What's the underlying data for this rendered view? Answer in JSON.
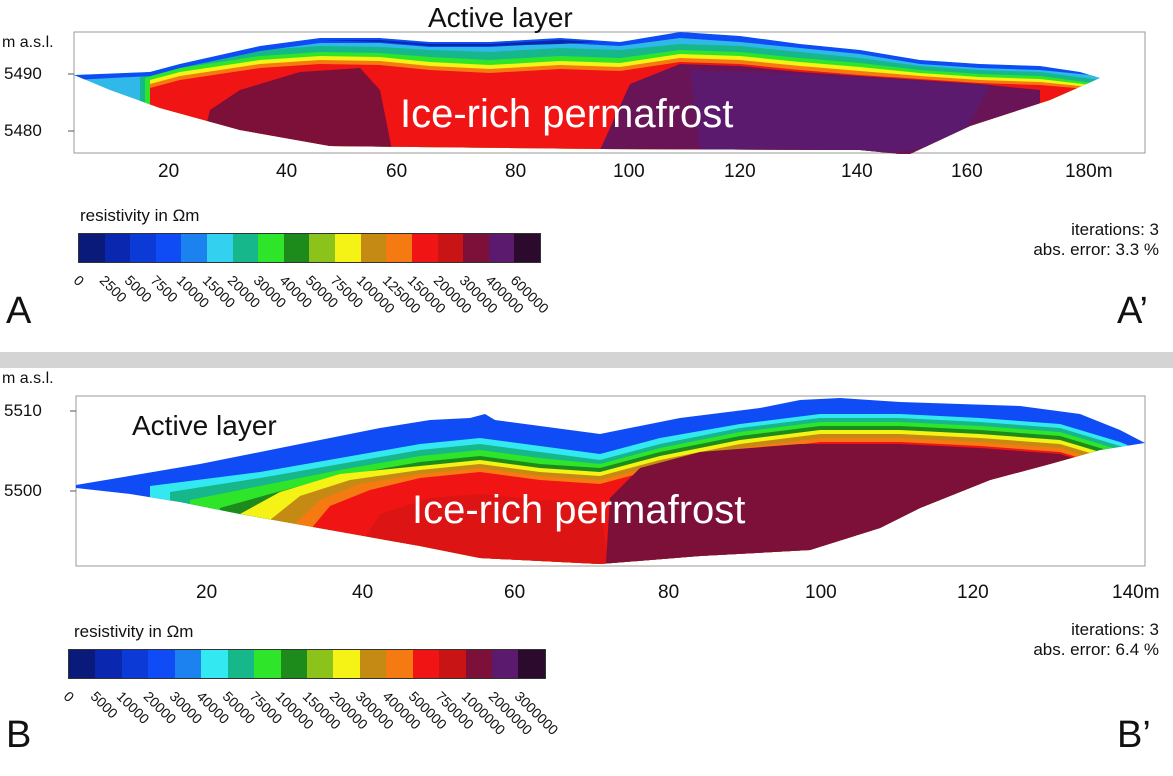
{
  "colors": {
    "legend_a": [
      "#0a1a7a",
      "#0a27b0",
      "#0b3ad6",
      "#0f4cf5",
      "#1b82f0",
      "#33d0f0",
      "#16b78a",
      "#2ee52a",
      "#1d8a1c",
      "#8cc31a",
      "#f5f216",
      "#c48a14",
      "#f57a12",
      "#f01414",
      "#c81414",
      "#7d1038",
      "#5c1a6e",
      "#2c0a2e"
    ],
    "legend_b": [
      "#0a1a7a",
      "#0a27b0",
      "#0b3ad6",
      "#0f4cf5",
      "#1b82f0",
      "#33e8f0",
      "#16b78a",
      "#2ee52a",
      "#1d8a1c",
      "#8cc31a",
      "#f5f216",
      "#c48a14",
      "#f57a12",
      "#f01414",
      "#c81414",
      "#7d1038",
      "#5c1a6e",
      "#2c0a2e"
    ]
  },
  "panel_a": {
    "y_axis_label": "m a.s.l.",
    "y_ticks": [
      "5490",
      "5480"
    ],
    "x_ticks": [
      "20",
      "40",
      "60",
      "80",
      "100",
      "120",
      "140",
      "160",
      "180m"
    ],
    "overlay_active_layer": "Active layer",
    "overlay_permafrost": "Ice-rich permafrost",
    "legend_title": "resistivity in Ωm",
    "legend_values": [
      "0",
      "2500",
      "5000",
      "7500",
      "10000",
      "15000",
      "20000",
      "30000",
      "40000",
      "50000",
      "75000",
      "100000",
      "125000",
      "150000",
      "200000",
      "300000",
      "400000",
      "600000"
    ],
    "iterations": "iterations: 3",
    "abs_error": "abs. error: 3.3 %",
    "label_left": "A",
    "label_right": "A’"
  },
  "panel_b": {
    "y_axis_label": "m a.s.l.",
    "y_ticks": [
      "5510",
      "5500"
    ],
    "x_ticks": [
      "20",
      "40",
      "60",
      "80",
      "100",
      "120",
      "140m"
    ],
    "overlay_active_layer": "Active layer",
    "overlay_permafrost": "Ice-rich permafrost",
    "legend_title": "resistivity in Ωm",
    "legend_values": [
      "0",
      "5000",
      "10000",
      "20000",
      "30000",
      "40000",
      "50000",
      "75000",
      "100000",
      "150000",
      "200000",
      "300000",
      "400000",
      "500000",
      "750000",
      "1000000",
      "2000000",
      "3000000"
    ],
    "iterations": "iterations: 3",
    "abs_error": "abs. error: 6.4 %",
    "label_left": "B",
    "label_right": "B’"
  }
}
